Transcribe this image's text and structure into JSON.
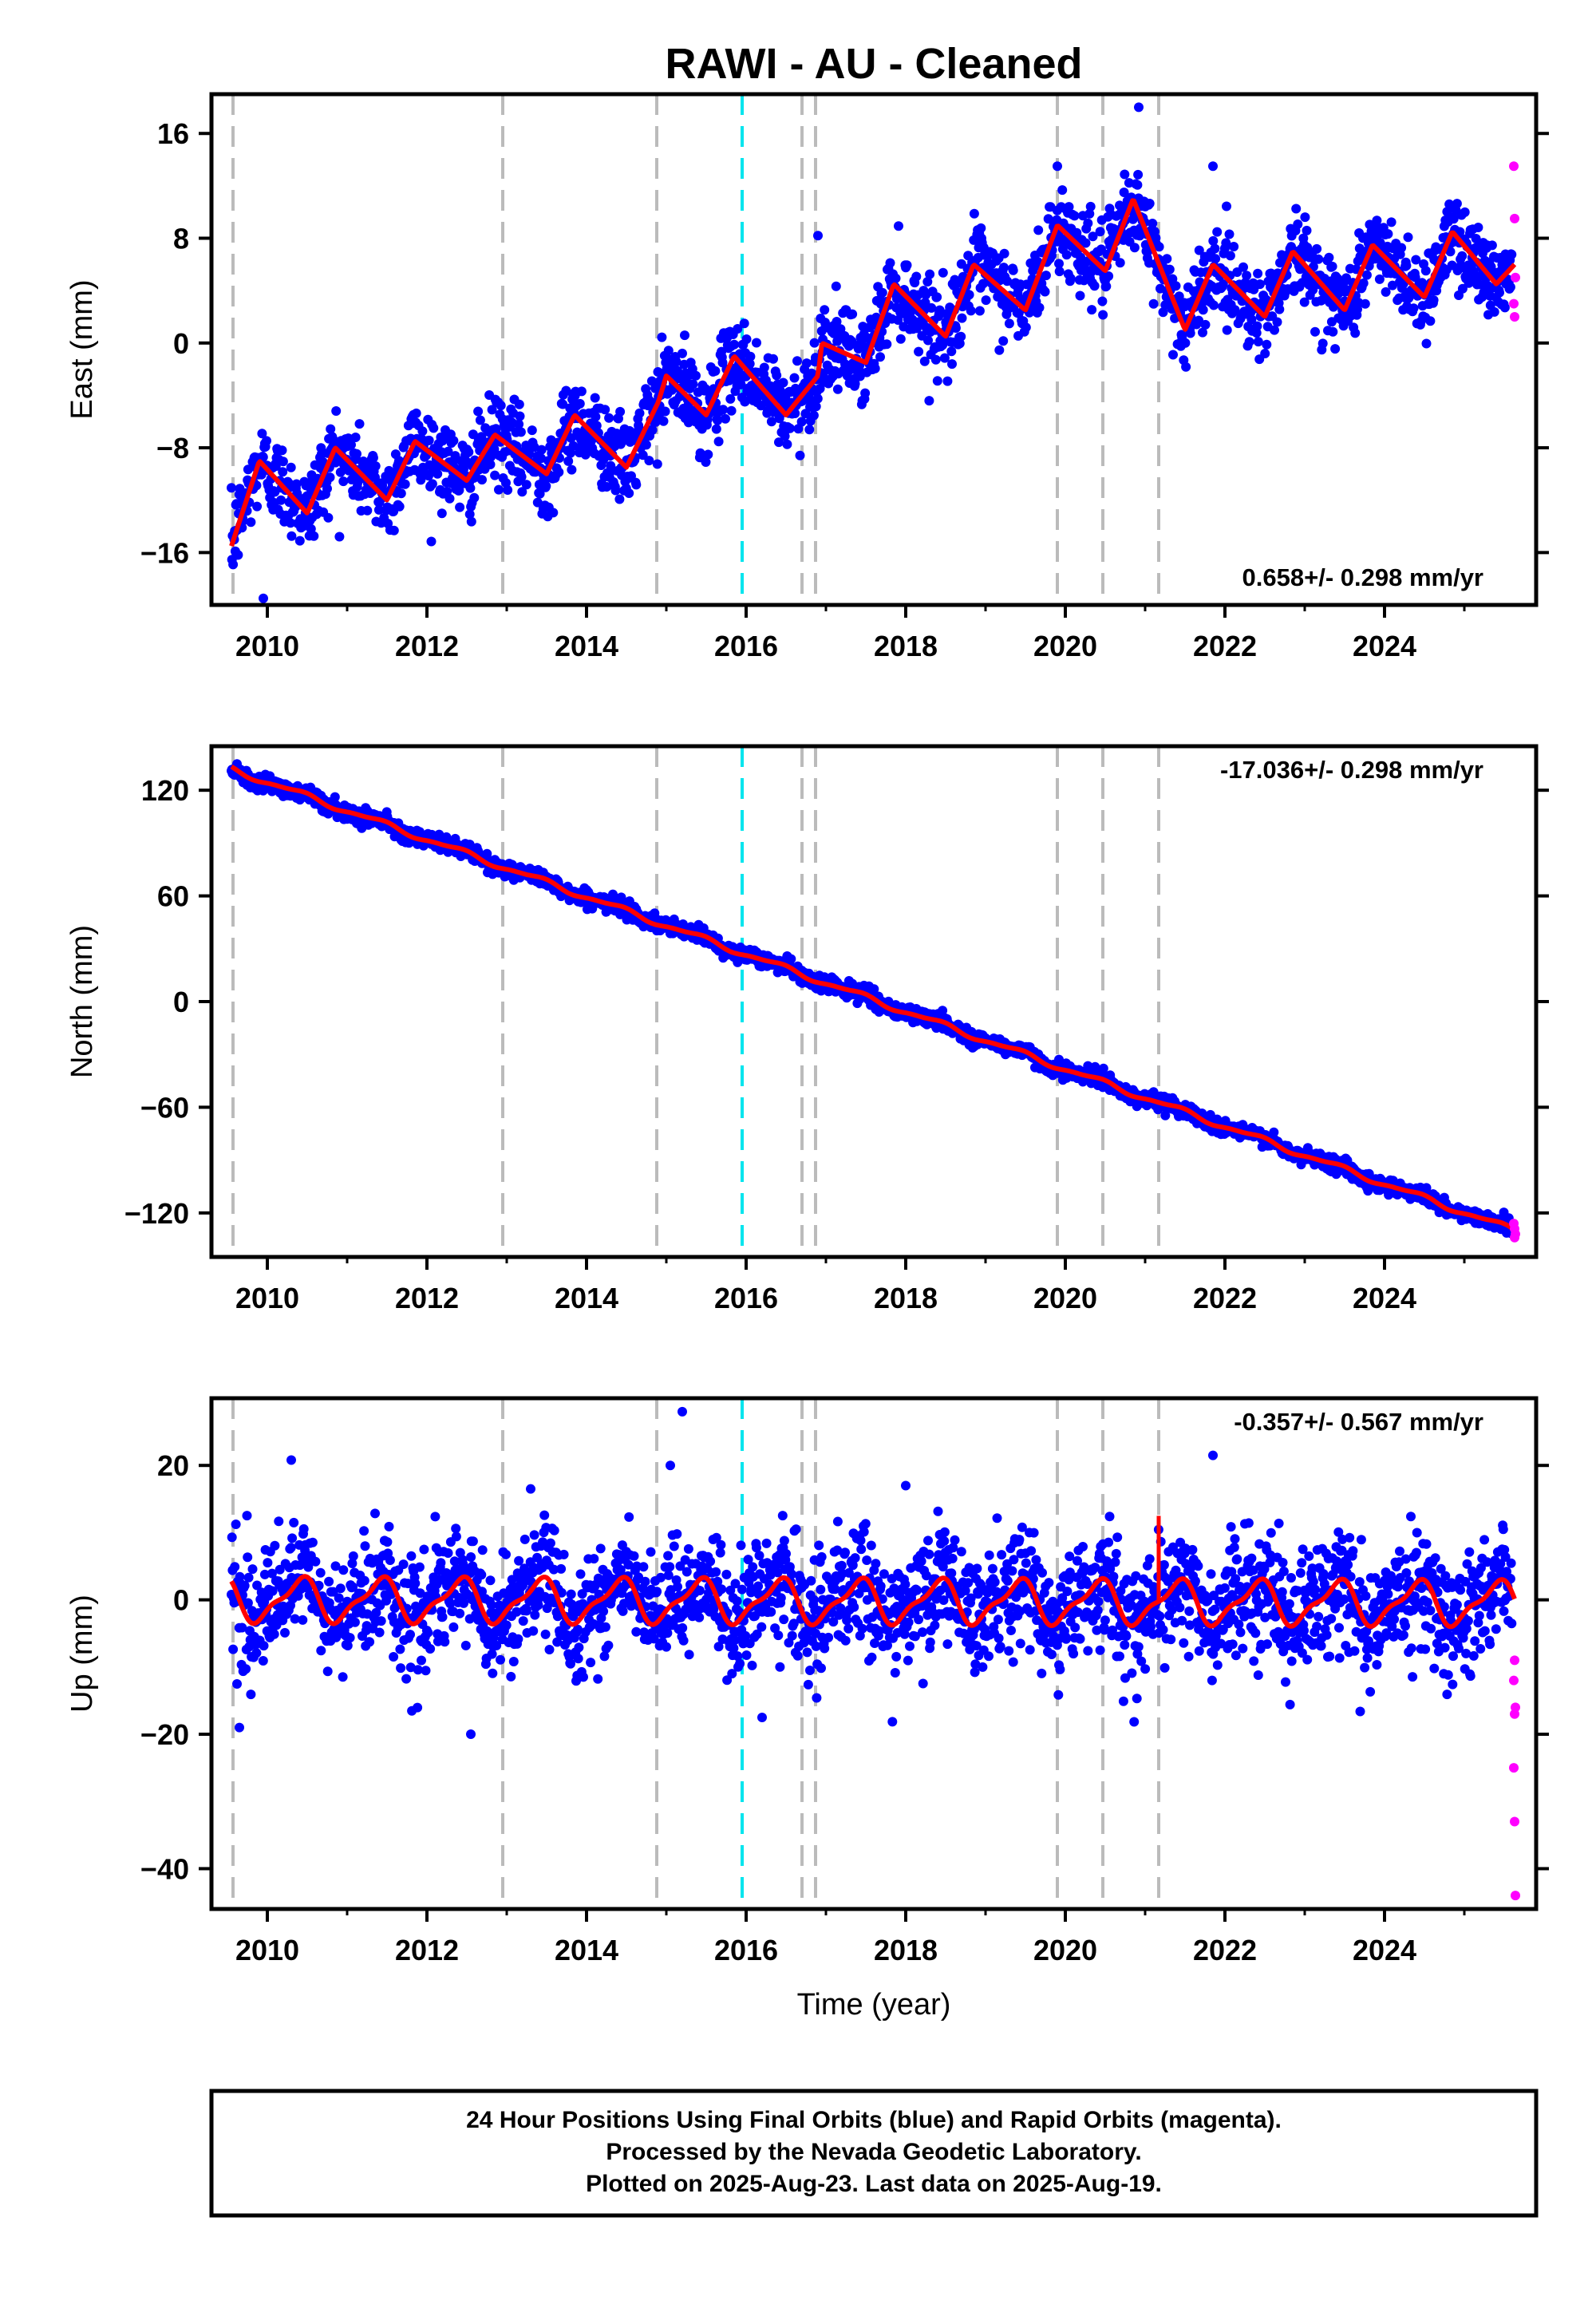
{
  "title": "RAWI  - AU - Cleaned",
  "footer": {
    "line1": "24 Hour Positions Using Final Orbits (blue) and Rapid Orbits (magenta).",
    "line2": "Processed by the Nevada Geodetic Laboratory.",
    "line3": "Plotted on 2025-Aug-23. Last data on 2025-Aug-19."
  },
  "colors": {
    "final": "#0000ff",
    "rapid": "#ff00ff",
    "model": "#ff0000",
    "event": "#bbbbbb",
    "equipment": "#00e5ee"
  },
  "chart_data": [
    {
      "type": "scatter",
      "component": "east",
      "ylabel": "East (mm)",
      "xlabel": "",
      "xlim": [
        2009.3,
        2025.9
      ],
      "ylim": [
        -20,
        19
      ],
      "yticks": [
        -16,
        -8,
        0,
        8,
        16
      ],
      "xticks": [
        2010,
        2012,
        2014,
        2016,
        2018,
        2020,
        2022,
        2024
      ],
      "rate_label": "0.658+/- 0.298 mm/yr",
      "rate_position": "bottom-right",
      "grid": false,
      "trend": {
        "start": 2009.55,
        "end": 2025.63,
        "y_start": -12.5,
        "y_end": 4.5
      },
      "offsets": [
        {
          "time": 2014.9,
          "step": 2.5
        },
        {
          "time": 2016.9,
          "step": 3.0
        }
      ],
      "seasonal_amplitude": 2.8,
      "scatter_sigma": 1.6,
      "model_points": [
        [
          2009.55,
          -15.5
        ],
        [
          2009.9,
          -9.0
        ],
        [
          2010.5,
          -13.0
        ],
        [
          2010.85,
          -8.0
        ],
        [
          2011.5,
          -12.0
        ],
        [
          2011.85,
          -7.5
        ],
        [
          2012.5,
          -10.5
        ],
        [
          2012.85,
          -7.0
        ],
        [
          2013.5,
          -10.0
        ],
        [
          2013.85,
          -5.5
        ],
        [
          2014.5,
          -9.5
        ],
        [
          2014.9,
          -4.5
        ],
        [
          2015.0,
          -2.5
        ],
        [
          2015.5,
          -5.5
        ],
        [
          2015.85,
          -1.0
        ],
        [
          2016.5,
          -5.5
        ],
        [
          2016.9,
          -2.5
        ],
        [
          2016.95,
          0.0
        ],
        [
          2017.5,
          -1.5
        ],
        [
          2017.85,
          4.5
        ],
        [
          2018.5,
          0.5
        ],
        [
          2018.85,
          6.0
        ],
        [
          2019.5,
          2.5
        ],
        [
          2019.9,
          9.0
        ],
        [
          2020.5,
          5.5
        ],
        [
          2020.85,
          11.0
        ],
        [
          2021.5,
          1.0
        ],
        [
          2021.85,
          6.0
        ],
        [
          2022.5,
          2.0
        ],
        [
          2022.85,
          7.0
        ],
        [
          2023.5,
          2.5
        ],
        [
          2023.85,
          7.5
        ],
        [
          2024.5,
          3.5
        ],
        [
          2024.85,
          8.5
        ],
        [
          2025.4,
          4.5
        ],
        [
          2025.63,
          6.0
        ]
      ],
      "outliers": [
        [
          2020.92,
          18.0
        ],
        [
          2015.2,
          -0.8
        ],
        [
          2016.9,
          8.2
        ],
        [
          2021.85,
          13.5
        ],
        [
          2019.9,
          13.5
        ],
        [
          2009.95,
          -19.5
        ]
      ],
      "rapid_points": [
        [
          2025.62,
          13.5
        ],
        [
          2025.63,
          9.5
        ],
        [
          2025.64,
          5.0
        ],
        [
          2025.63,
          2.0
        ],
        [
          2025.62,
          3.0
        ]
      ]
    },
    {
      "type": "scatter",
      "component": "north",
      "ylabel": "North (mm)",
      "xlabel": "",
      "xlim": [
        2009.3,
        2025.9
      ],
      "ylim": [
        -145,
        145
      ],
      "yticks": [
        -120,
        -60,
        0,
        60,
        120
      ],
      "xticks": [
        2010,
        2012,
        2014,
        2016,
        2018,
        2020,
        2022,
        2024
      ],
      "rate_label": "-17.036+/- 0.298 mm/yr",
      "rate_position": "top-right",
      "grid": false,
      "trend": {
        "start": 2009.55,
        "end": 2025.63,
        "y_start": 132,
        "y_end": -130
      },
      "offsets": [],
      "seasonal_amplitude": 1.5,
      "scatter_sigma": 2.2,
      "model_points": [],
      "outliers": [],
      "rapid_points": [
        [
          2025.62,
          -126.0
        ],
        [
          2025.63,
          -129.0
        ],
        [
          2025.64,
          -132.0
        ],
        [
          2025.63,
          -134.0
        ]
      ]
    },
    {
      "type": "scatter",
      "component": "up",
      "ylabel": "Up (mm)",
      "xlabel": "Time (year)",
      "xlim": [
        2009.3,
        2025.9
      ],
      "ylim": [
        -46,
        30
      ],
      "yticks": [
        -40,
        -20,
        0,
        20
      ],
      "xticks": [
        2010,
        2012,
        2014,
        2016,
        2018,
        2020,
        2022,
        2024
      ],
      "rate_label": "-0.357+/- 0.567 mm/yr",
      "rate_position": "top-right",
      "grid": false,
      "trend": {
        "start": 2009.55,
        "end": 2025.63,
        "y_start": 0.0,
        "y_end": -0.5
      },
      "offsets": [],
      "seasonal_amplitude": 3.0,
      "scatter_sigma": 4.2,
      "model_points": [],
      "spike": {
        "time": 2021.17,
        "top": 12.5
      },
      "outliers": [
        [
          2015.2,
          28.0
        ],
        [
          2021.85,
          21.5
        ],
        [
          2015.05,
          20.0
        ],
        [
          2016.2,
          -17.5
        ],
        [
          2009.65,
          -19.0
        ],
        [
          2012.55,
          -20.0
        ],
        [
          2010.3,
          20.8
        ],
        [
          2018.0,
          17.0
        ],
        [
          2013.3,
          16.5
        ]
      ],
      "rapid_points": [
        [
          2025.63,
          -9.0
        ],
        [
          2025.62,
          -12.0
        ],
        [
          2025.64,
          -16.0
        ],
        [
          2025.63,
          -17.0
        ],
        [
          2025.62,
          -25.0
        ],
        [
          2025.63,
          -33.0
        ],
        [
          2025.64,
          -44.0
        ]
      ]
    }
  ],
  "events": {
    "gray": [
      2009.57,
      2012.95,
      2014.88,
      2016.7,
      2016.87,
      2019.9,
      2020.47,
      2021.17
    ],
    "cyan": [
      2015.95
    ]
  }
}
